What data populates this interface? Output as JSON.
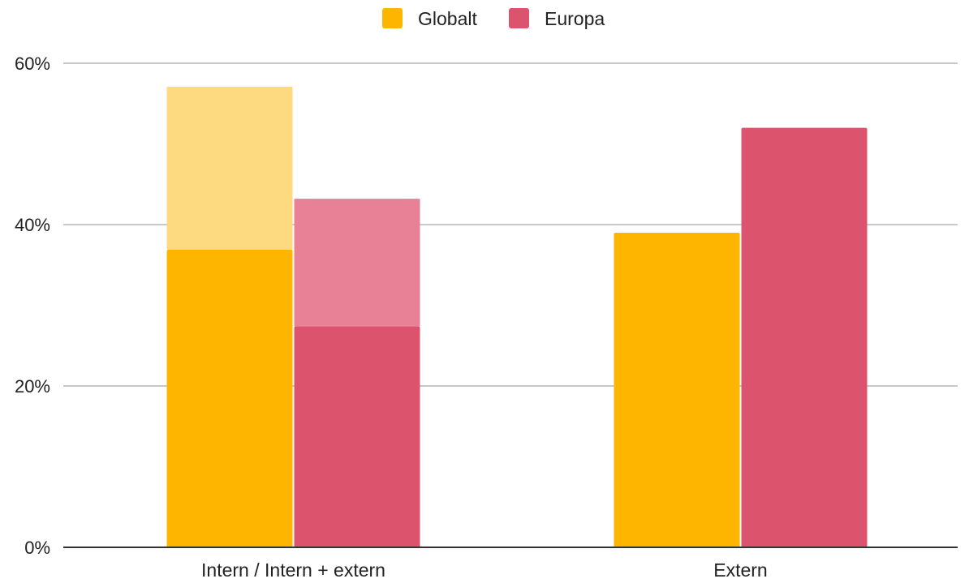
{
  "chart_data": {
    "type": "bar",
    "stacked": "partial",
    "title": "",
    "xlabel": "",
    "ylabel": "",
    "ylim": [
      0,
      60
    ],
    "y_tick_values": [
      0,
      20,
      40,
      60
    ],
    "y_tick_labels": [
      "0%",
      "20%",
      "40%",
      "60%"
    ],
    "categories": [
      "Intern / Intern + extern",
      "Extern"
    ],
    "grid": true,
    "legend_position": "top-center",
    "series": [
      {
        "name": "Globalt",
        "color": "#FDB500",
        "light_color": "#FDDA80",
        "segments": [
          {
            "base": 36.9,
            "extra": 20.2
          },
          {
            "base": 39.0,
            "extra": 0
          }
        ]
      },
      {
        "name": "Europa",
        "color": "#DB536C",
        "light_color": "#E88196",
        "segments": [
          {
            "base": 27.4,
            "extra": 15.8
          },
          {
            "base": 52.0,
            "extra": 0
          }
        ]
      }
    ]
  }
}
